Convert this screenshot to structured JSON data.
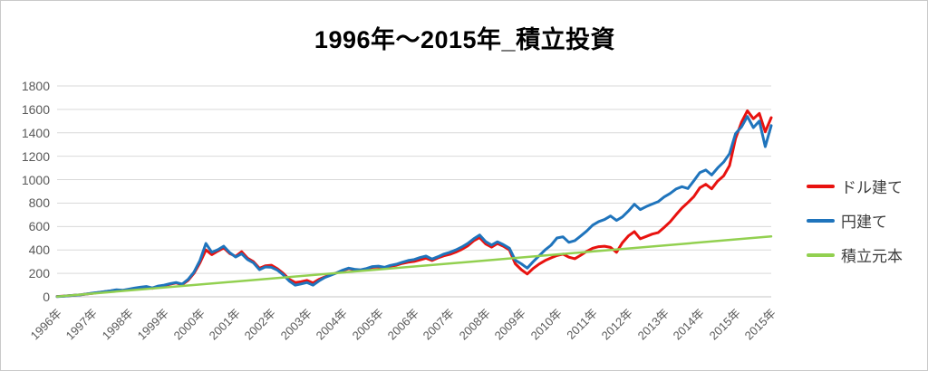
{
  "title": "1996年〜2015年_積立投資",
  "colors": {
    "gridline": "#d9d9d9",
    "axis_label": "#595959",
    "title_text": "#000000",
    "frame_border": "#c9c9c9",
    "series_red": "#e8120f",
    "series_blue": "#1f74bc",
    "series_green": "#92d050"
  },
  "chart_data": {
    "type": "line",
    "title": "1996年〜2015年_積立投資",
    "xlabel": "",
    "ylabel": "",
    "grid": "horizontal",
    "legend_position": "right",
    "x_axis": {
      "range": [
        1996,
        2016
      ],
      "tick_labels": [
        "1996年",
        "1997年",
        "1998年",
        "1999年",
        "2000年",
        "2001年",
        "2002年",
        "2003年",
        "2004年",
        "2005年",
        "2006年",
        "2007年",
        "2008年",
        "2009年",
        "2010年",
        "2011年",
        "2012年",
        "2013年",
        "2014年",
        "2015年",
        "2015年"
      ]
    },
    "y_axis": {
      "range": [
        0,
        1800
      ],
      "ticks": [
        0,
        200,
        400,
        600,
        800,
        1000,
        1200,
        1400,
        1600,
        1800
      ]
    },
    "series": [
      {
        "name": "ドル建て",
        "color": "#e8120f",
        "stroke_width": 3,
        "x_start": 1996,
        "x_step": 0.166667,
        "values": [
          3,
          6,
          10,
          14,
          18,
          24,
          30,
          37,
          43,
          50,
          58,
          54,
          62,
          70,
          78,
          84,
          72,
          88,
          95,
          108,
          118,
          104,
          140,
          200,
          290,
          400,
          360,
          390,
          418,
          370,
          345,
          385,
          330,
          300,
          243,
          265,
          270,
          240,
          200,
          150,
          122,
          128,
          140,
          118,
          148,
          170,
          188,
          205,
          225,
          240,
          232,
          228,
          238,
          252,
          255,
          248,
          262,
          270,
          285,
          295,
          302,
          315,
          330,
          310,
          332,
          350,
          362,
          382,
          405,
          435,
          478,
          505,
          452,
          424,
          455,
          432,
          400,
          282,
          232,
          195,
          242,
          280,
          310,
          332,
          352,
          365,
          338,
          325,
          355,
          388,
          415,
          428,
          432,
          422,
          380,
          462,
          520,
          556,
          495,
          515,
          535,
          548,
          592,
          640,
          700,
          758,
          805,
          855,
          930,
          960,
          922,
          988,
          1032,
          1120,
          1350,
          1490,
          1588,
          1520,
          1565,
          1408,
          1530
        ]
      },
      {
        "name": "円建て",
        "color": "#1f74bc",
        "stroke_width": 3,
        "x_start": 1996,
        "x_step": 0.166667,
        "values": [
          2,
          5,
          9,
          13,
          18,
          25,
          32,
          38,
          45,
          52,
          60,
          56,
          65,
          74,
          82,
          88,
          76,
          92,
          100,
          112,
          122,
          108,
          148,
          210,
          310,
          455,
          380,
          402,
          432,
          378,
          340,
          368,
          318,
          290,
          232,
          255,
          252,
          228,
          188,
          135,
          100,
          110,
          122,
          100,
          135,
          165,
          185,
          205,
          228,
          245,
          235,
          230,
          242,
          258,
          262,
          252,
          268,
          278,
          295,
          310,
          318,
          335,
          348,
          322,
          342,
          365,
          380,
          400,
          425,
          455,
          495,
          528,
          472,
          442,
          470,
          445,
          415,
          312,
          282,
          245,
          300,
          350,
          400,
          440,
          502,
          512,
          465,
          480,
          520,
          562,
          612,
          642,
          660,
          690,
          652,
          682,
          732,
          790,
          745,
          770,
          792,
          812,
          852,
          882,
          920,
          940,
          925,
          990,
          1060,
          1082,
          1040,
          1100,
          1150,
          1222,
          1392,
          1450,
          1540,
          1445,
          1500,
          1282,
          1462
        ]
      },
      {
        "name": "積立元本",
        "color": "#92d050",
        "stroke_width": 2.5,
        "x_start": 1996,
        "x_step": 20,
        "values": [
          2,
          515
        ]
      }
    ]
  }
}
